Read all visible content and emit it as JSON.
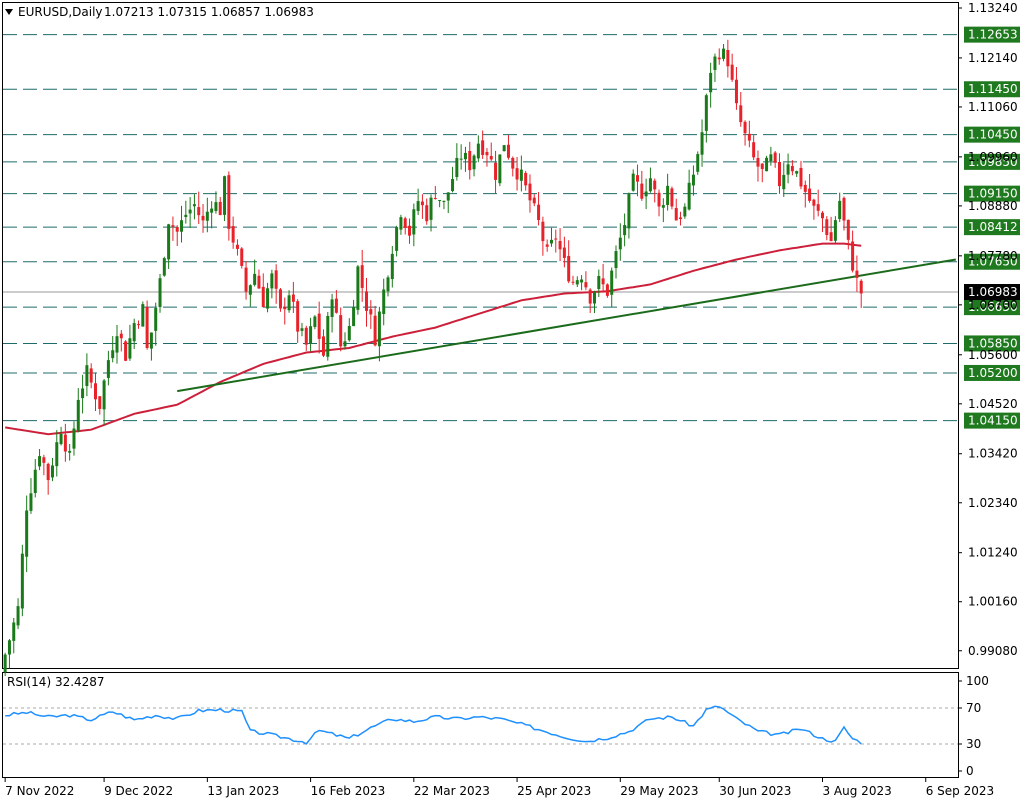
{
  "header": {
    "symbol": "EURUSD,Daily",
    "ohlc": "1.07213 1.07315 1.06857 1.06983"
  },
  "rsi_header": "RSI(14) 32.4287",
  "colors": {
    "bull": "#1a7a1a",
    "bear": "#e8222a",
    "ma": "#cc1f3a",
    "trendline": "#1c6b1c",
    "level_line": "#1f6b6b",
    "level_box": "#1f7a1f",
    "rsi_line": "#1e90ff",
    "current_box": "#000000"
  },
  "chart_data": [
    {
      "type": "candlestick",
      "title": "EURUSD,Daily",
      "price_axis_ticks": [
        "1.13240",
        "1.12140",
        "1.11060",
        "1.09960",
        "1.08880",
        "1.07780",
        "1.06700",
        "1.05600",
        "1.04520",
        "1.03420",
        "1.02340",
        "1.01240",
        "1.00160",
        "0.99080"
      ],
      "ylim": [
        0.987,
        1.1335
      ],
      "date_axis_ticks": [
        "7 Nov 2022",
        "9 Dec 2022",
        "13 Jan 2023",
        "16 Feb 2023",
        "22 Mar 2023",
        "25 Apr 2023",
        "29 May 2023",
        "30 Jun 2023",
        "3 Aug 2023",
        "6 Sep 2023"
      ],
      "levels": [
        "1.12653",
        "1.11450",
        "1.10450",
        "1.09850",
        "1.09150",
        "1.08412",
        "1.07650",
        "1.06650",
        "1.05850",
        "1.05200",
        "1.04150"
      ],
      "current_price": "1.06983",
      "close_path": [
        [
          0,
          0.99
        ],
        [
          3,
          1.0
        ],
        [
          5,
          1.023
        ],
        [
          8,
          1.035
        ],
        [
          10,
          1.029
        ],
        [
          13,
          1.04
        ],
        [
          15,
          1.033
        ],
        [
          17,
          1.047
        ],
        [
          19,
          1.052
        ],
        [
          22,
          1.045
        ],
        [
          24,
          1.055
        ],
        [
          26,
          1.062
        ],
        [
          28,
          1.056
        ],
        [
          30,
          1.063
        ],
        [
          32,
          1.066
        ],
        [
          33,
          1.057
        ],
        [
          34,
          1.061
        ],
        [
          36,
          1.072
        ],
        [
          38,
          1.086
        ],
        [
          40,
          1.083
        ],
        [
          42,
          1.087
        ],
        [
          44,
          1.089
        ],
        [
          46,
          1.085
        ],
        [
          48,
          1.09
        ],
        [
          50,
          1.088
        ],
        [
          51,
          1.0935
        ],
        [
          52,
          1.085
        ],
        [
          54,
          1.078
        ],
        [
          56,
          1.07
        ],
        [
          58,
          1.074
        ],
        [
          60,
          1.068
        ],
        [
          62,
          1.073
        ],
        [
          64,
          1.065
        ],
        [
          66,
          1.07
        ],
        [
          68,
          1.062
        ],
        [
          70,
          1.058
        ],
        [
          72,
          1.064
        ],
        [
          74,
          1.056
        ],
        [
          76,
          1.07
        ],
        [
          78,
          1.058
        ],
        [
          80,
          1.062
        ],
        [
          82,
          1.075
        ],
        [
          84,
          1.067
        ],
        [
          86,
          1.06
        ],
        [
          88,
          1.07
        ],
        [
          90,
          1.08
        ],
        [
          92,
          1.088
        ],
        [
          94,
          1.083
        ],
        [
          96,
          1.09
        ],
        [
          98,
          1.087
        ],
        [
          100,
          1.092
        ],
        [
          102,
          1.089
        ],
        [
          104,
          1.095
        ],
        [
          106,
          1.1
        ],
        [
          108,
          1.098
        ],
        [
          110,
          1.103
        ],
        [
          112,
          1.101
        ],
        [
          114,
          1.096
        ],
        [
          116,
          1.103
        ],
        [
          118,
          1.098
        ],
        [
          120,
          1.095
        ],
        [
          122,
          1.09
        ],
        [
          124,
          1.085
        ],
        [
          126,
          1.078
        ],
        [
          128,
          1.082
        ],
        [
          130,
          1.076
        ],
        [
          132,
          1.072
        ],
        [
          134,
          1.074
        ],
        [
          136,
          1.069
        ],
        [
          138,
          1.072
        ],
        [
          140,
          1.07
        ],
        [
          142,
          1.078
        ],
        [
          144,
          1.085
        ],
        [
          146,
          1.094
        ],
        [
          148,
          1.092
        ],
        [
          150,
          1.095
        ],
        [
          152,
          1.088
        ],
        [
          154,
          1.093
        ],
        [
          156,
          1.086
        ],
        [
          158,
          1.088
        ],
        [
          160,
          1.096
        ],
        [
          162,
          1.105
        ],
        [
          164,
          1.119
        ],
        [
          166,
          1.123
        ],
        [
          168,
          1.121
        ],
        [
          170,
          1.11
        ],
        [
          172,
          1.104
        ],
        [
          174,
          1.099
        ],
        [
          176,
          1.096
        ],
        [
          178,
          1.099
        ],
        [
          180,
          1.094
        ],
        [
          182,
          1.099
        ],
        [
          184,
          1.096
        ],
        [
          186,
          1.092
        ],
        [
          188,
          1.088
        ],
        [
          190,
          1.086
        ],
        [
          192,
          1.081
        ],
        [
          193,
          1.086
        ],
        [
          194,
          1.09
        ],
        [
          195,
          1.085
        ],
        [
          196,
          1.08
        ],
        [
          197,
          1.076
        ],
        [
          198,
          1.072
        ],
        [
          199,
          1.0698
        ]
      ],
      "sma_path": [
        [
          0,
          1.04
        ],
        [
          10,
          1.0385
        ],
        [
          20,
          1.0395
        ],
        [
          30,
          1.043
        ],
        [
          40,
          1.045
        ],
        [
          50,
          1.05
        ],
        [
          60,
          1.054
        ],
        [
          70,
          1.0565
        ],
        [
          80,
          1.0575
        ],
        [
          90,
          1.06
        ],
        [
          100,
          1.062
        ],
        [
          110,
          1.065
        ],
        [
          120,
          1.068
        ],
        [
          130,
          1.0695
        ],
        [
          140,
          1.07
        ],
        [
          150,
          1.0715
        ],
        [
          160,
          1.0745
        ],
        [
          170,
          1.077
        ],
        [
          180,
          1.079
        ],
        [
          190,
          1.0805
        ],
        [
          195,
          1.0805
        ],
        [
          199,
          1.08
        ]
      ],
      "trendline": [
        [
          40,
          1.048
        ],
        [
          221,
          1.077
        ]
      ]
    },
    {
      "type": "line",
      "title": "RSI(14) 32.4287",
      "y_ticks": [
        "100",
        "70",
        "30",
        "0"
      ],
      "ylim": [
        0,
        100
      ],
      "levels": [
        70,
        30
      ],
      "values_path": [
        [
          0,
          62
        ],
        [
          5,
          65
        ],
        [
          10,
          60
        ],
        [
          15,
          62
        ],
        [
          20,
          57
        ],
        [
          25,
          66
        ],
        [
          30,
          57
        ],
        [
          35,
          62
        ],
        [
          40,
          58
        ],
        [
          45,
          67
        ],
        [
          50,
          68
        ],
        [
          55,
          66
        ],
        [
          57,
          44
        ],
        [
          60,
          42
        ],
        [
          65,
          37
        ],
        [
          70,
          32
        ],
        [
          73,
          45
        ],
        [
          80,
          36
        ],
        [
          85,
          48
        ],
        [
          90,
          58
        ],
        [
          95,
          55
        ],
        [
          100,
          60
        ],
        [
          105,
          58
        ],
        [
          110,
          60
        ],
        [
          115,
          58
        ],
        [
          120,
          52
        ],
        [
          125,
          45
        ],
        [
          130,
          38
        ],
        [
          135,
          33
        ],
        [
          140,
          37
        ],
        [
          145,
          44
        ],
        [
          150,
          58
        ],
        [
          155,
          60
        ],
        [
          160,
          50
        ],
        [
          163,
          68
        ],
        [
          166,
          72
        ],
        [
          170,
          58
        ],
        [
          175,
          44
        ],
        [
          180,
          40
        ],
        [
          185,
          47
        ],
        [
          190,
          36
        ],
        [
          193,
          33
        ],
        [
          195,
          48
        ],
        [
          197,
          36
        ],
        [
          199,
          32
        ]
      ]
    }
  ]
}
